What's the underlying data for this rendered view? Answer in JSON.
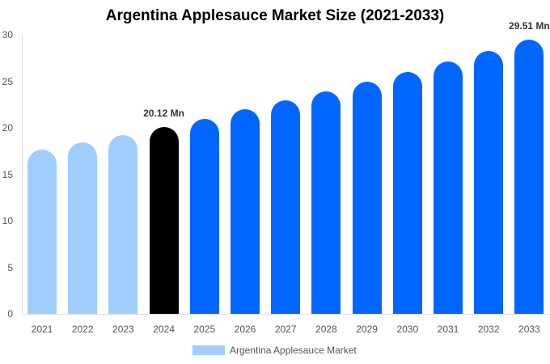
{
  "chart_data": {
    "type": "bar",
    "title": "Argentina Applesauce Market Size (2021-2033)",
    "xlabel": "",
    "ylabel": "",
    "ylim": [
      0,
      30
    ],
    "yticks": [
      "0",
      "5",
      "10",
      "15",
      "20",
      "25",
      "30"
    ],
    "categories": [
      "2021",
      "2022",
      "2023",
      "2024",
      "2025",
      "2026",
      "2027",
      "2028",
      "2029",
      "2030",
      "2031",
      "2032",
      "2033"
    ],
    "series": [
      {
        "name": "Argentina Applesauce Market",
        "values": [
          17.67,
          18.46,
          19.25,
          20.12,
          21.0,
          21.96,
          22.92,
          23.9,
          24.93,
          25.98,
          27.1,
          28.26,
          29.51
        ]
      }
    ],
    "bar_colors": [
      "#9fcdfd",
      "#9fcdfd",
      "#9fcdfd",
      "#000000",
      "#0066ff",
      "#0066ff",
      "#0066ff",
      "#0066ff",
      "#0066ff",
      "#0066ff",
      "#0066ff",
      "#0066ff",
      "#0066ff"
    ],
    "annotations": [
      {
        "category": "2024",
        "text": "20.12 Mn"
      },
      {
        "category": "2033",
        "text": "29.51 Mn"
      }
    ],
    "legend": {
      "position": "bottom",
      "label": "Argentina Applesauce Market",
      "color": "#9fcdfd"
    },
    "grid": false
  }
}
